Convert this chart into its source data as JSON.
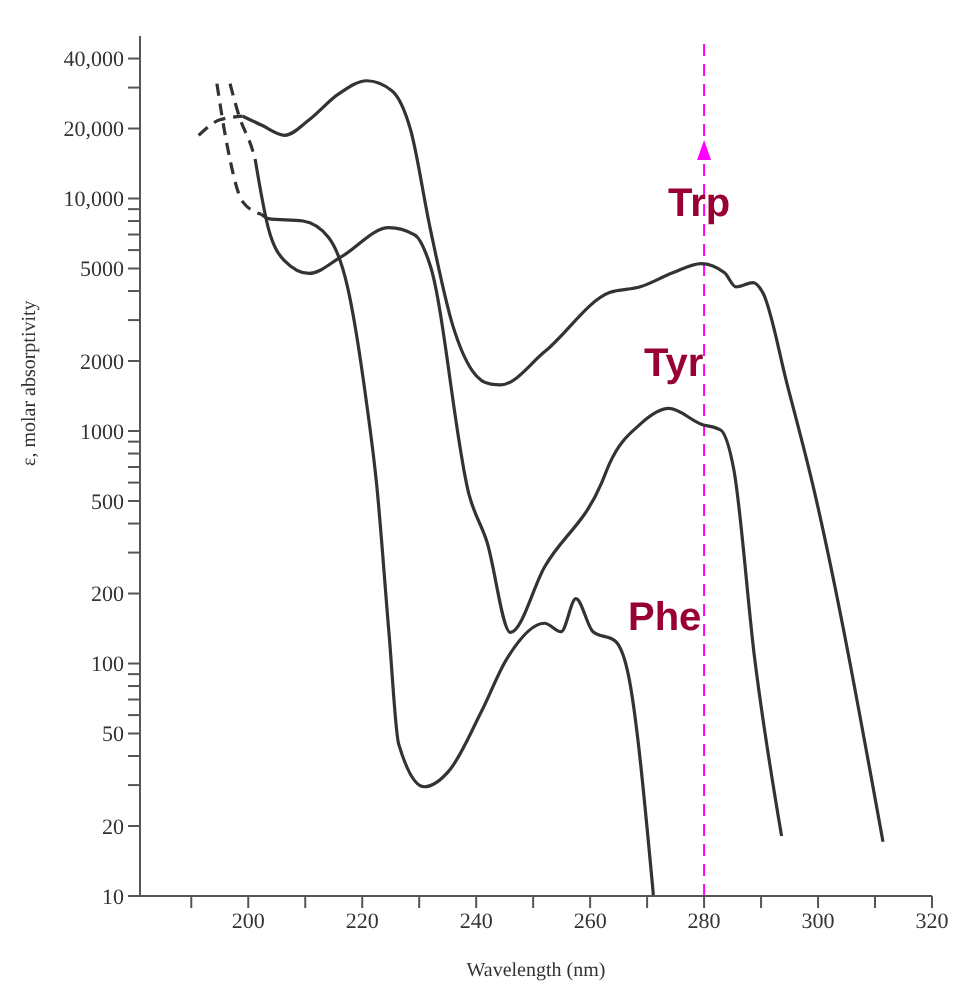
{
  "chart_data": {
    "type": "line",
    "xlabel": "Wavelength (nm)",
    "ylabel": "ε, molar absorptivity",
    "log": "y",
    "marker": "none",
    "line_style": "solid",
    "xlim": [
      181,
      320
    ],
    "xticks": [
      {
        "value": 190,
        "label": null
      },
      200,
      {
        "value": 210,
        "label": null
      },
      220,
      {
        "value": 230,
        "label": null
      },
      240,
      {
        "value": 250,
        "label": null
      },
      260,
      {
        "value": 270,
        "label": null
      },
      280,
      {
        "value": 290,
        "label": null
      },
      300,
      {
        "value": 310,
        "label": null
      },
      320
    ],
    "ylim": [
      10,
      50000
    ],
    "yticks": [
      10,
      20,
      {
        "value": 30,
        "label": null
      },
      {
        "value": 40,
        "label": null
      },
      50,
      {
        "value": 60,
        "label": null
      },
      {
        "value": 70,
        "label": null
      },
      {
        "value": 80,
        "label": null
      },
      {
        "value": 90,
        "label": null
      },
      100,
      200,
      {
        "value": 300,
        "label": null
      },
      {
        "value": 400,
        "label": null
      },
      500,
      {
        "value": 600,
        "label": null
      },
      {
        "value": 700,
        "label": null
      },
      {
        "value": 800,
        "label": null
      },
      {
        "value": 900,
        "label": null
      },
      1000,
      2000,
      {
        "value": 3000,
        "label": null
      },
      {
        "value": 4000,
        "label": null
      },
      5000,
      {
        "value": 6000,
        "label": null
      },
      {
        "value": 7000,
        "label": null
      },
      {
        "value": 8000,
        "label": null
      },
      {
        "value": 9000,
        "label": null
      },
      {
        "value": 10000,
        "label": "10,000"
      },
      {
        "value": 20000,
        "label": "20,000"
      },
      {
        "value": 30000,
        "label": null
      },
      {
        "value": 40000,
        "label": "40,000"
      }
    ],
    "series": [
      {
        "color": "#333333",
        "line_style": "dashed",
        "x": [
          191.3,
          195,
          199
        ],
        "values": [
          18700,
          21800,
          22600
        ]
      },
      {
        "color": "#333333",
        "x": [
          199,
          202.3,
          206.4,
          210.7,
          215.8,
          220.8,
          225.2,
          228.5,
          231.9,
          235.9,
          239.3,
          242.6,
          244.3,
          252,
          263.4,
          268.8,
          274.5,
          279.5,
          283.6,
          285.6,
          288.6,
          290.3,
          294.6,
          299,
          311.4
        ],
        "values": [
          22600,
          20700,
          18700,
          21800,
          28100,
          32100,
          29100,
          19700,
          7500,
          2840,
          1820,
          1590,
          1580,
          2190,
          3940,
          4170,
          4790,
          5250,
          4790,
          4170,
          4350,
          3940,
          1580,
          598,
          17.1
        ]
      },
      {
        "color": "#333333",
        "line_style": "dashed",
        "x": [
          196.8,
          198.4,
          200.7,
          201.2
        ],
        "values": [
          31200,
          22600,
          16300,
          14800
        ]
      },
      {
        "color": "#333333",
        "x": [
          201.2,
          203.5,
          206.3,
          210.7,
          216.3,
          224.7,
          229.2,
          232,
          238.8,
          241.9,
          246,
          252,
          262,
          263.4,
          268.8,
          273.8,
          279.5,
          282.9,
          285.2,
          288.9,
          293.6
        ],
        "values": [
          14800,
          7500,
          5420,
          4760,
          5610,
          7500,
          6980,
          5090,
          527,
          333,
          136,
          260,
          597,
          724,
          1070,
          1250,
          1070,
          1010,
          686,
          104,
          18.1
        ]
      },
      {
        "color": "#333333",
        "line_style": "dashed",
        "x": [
          194.5,
          196.2,
          199,
          202.3
        ],
        "values": [
          31200,
          17400,
          9700,
          8550
        ]
      },
      {
        "color": "#333333",
        "x": [
          202.3,
          203.5,
          209.6,
          214.1,
          217.4,
          220.8,
          222.5,
          224.7,
          226.4,
          230.9,
          235.3,
          240.9,
          245.3,
          252,
          254.9,
          257.5,
          260.5,
          264.4,
          266.6,
          271.1
        ],
        "values": [
          8550,
          8200,
          8000,
          6800,
          4190,
          1300,
          600,
          135,
          45,
          29.5,
          34.7,
          62,
          104,
          149,
          137,
          190,
          137,
          125,
          92,
          10.1
        ]
      }
    ],
    "ref_lines": [
      {
        "axis": "x",
        "value": 280,
        "color": "#ff00ff",
        "line_style": "dashed"
      }
    ],
    "annotations": [
      "Trp",
      "Tyr",
      "Phe"
    ]
  }
}
